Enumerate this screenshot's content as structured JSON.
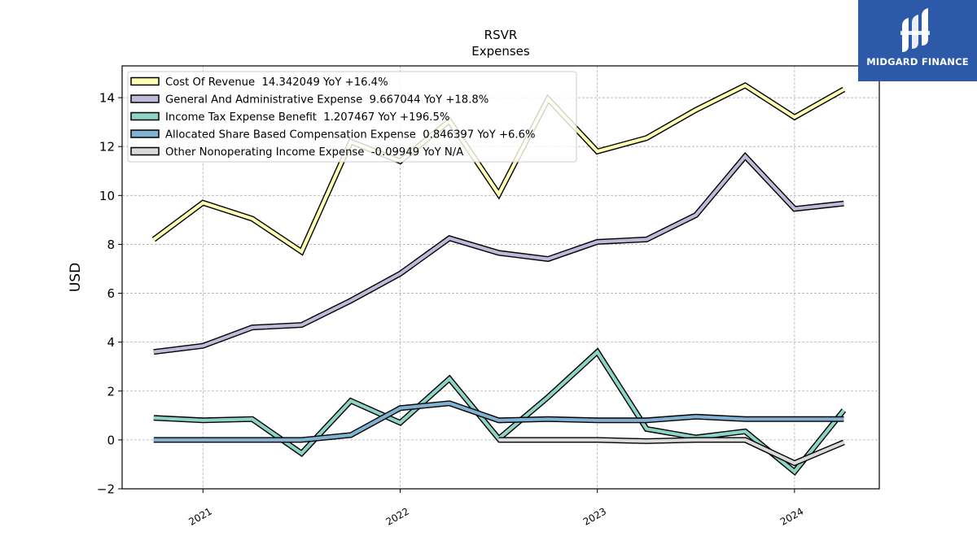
{
  "chart_data": {
    "type": "line",
    "title": "RSVR",
    "subtitle": "Expenses",
    "ylabel": "USD",
    "xlabel": "",
    "ylim": [
      -2,
      15.3
    ],
    "yticks": [
      -2,
      0,
      2,
      4,
      6,
      8,
      10,
      12,
      14
    ],
    "ytick_labels": [
      "−2",
      "0",
      "2",
      "4",
      "6",
      "8",
      "10",
      "12",
      "14"
    ],
    "xticks": [
      2021,
      2022,
      2023,
      2024
    ],
    "xtick_labels": [
      "2021",
      "2022",
      "2023",
      "2024"
    ],
    "xlim": [
      2020.59,
      2024.43
    ],
    "grid": true,
    "legend_position": "top-left",
    "x": [
      2020.75,
      2021.0,
      2021.25,
      2021.5,
      2021.75,
      2022.0,
      2022.25,
      2022.5,
      2022.75,
      2023.0,
      2023.25,
      2023.5,
      2023.75,
      2024.0,
      2024.25
    ],
    "series": [
      {
        "name": "Cost Of Revenue",
        "legend": "Cost Of Revenue  14.342049 YoY +16.4%",
        "color": "#ffffb3",
        "values": [
          8.2,
          9.7,
          9.05,
          7.7,
          12.2,
          11.4,
          13.05,
          10.05,
          13.95,
          11.8,
          12.35,
          13.5,
          14.5,
          13.2,
          14.34
        ]
      },
      {
        "name": "General And Administrative Expense",
        "legend": "General And Administrative Expense  9.667044 YoY +18.8%",
        "color": "#bebada",
        "values": [
          3.6,
          3.85,
          4.6,
          4.7,
          5.7,
          6.8,
          8.25,
          7.65,
          7.4,
          8.1,
          8.2,
          9.2,
          11.6,
          9.45,
          9.67
        ]
      },
      {
        "name": "Income Tax Expense Benefit",
        "legend": "Income Tax Expense Benefit  1.207467 YoY +196.5%",
        "color": "#8dd3c7",
        "values": [
          0.9,
          0.8,
          0.85,
          -0.55,
          1.6,
          0.7,
          2.5,
          0.05,
          1.75,
          3.6,
          0.45,
          0.1,
          0.35,
          -1.3,
          1.21
        ]
      },
      {
        "name": "Allocated Share Based Compensation Expense",
        "legend": "Allocated Share Based Compensation Expense  0.846397 YoY +6.6%",
        "color": "#80b1d3",
        "values": [
          0.0,
          0.0,
          0.0,
          0.0,
          0.2,
          1.3,
          1.5,
          0.8,
          0.85,
          0.8,
          0.8,
          0.95,
          0.85,
          0.85,
          0.85
        ]
      },
      {
        "name": "Other Nonoperating Income Expense",
        "legend": "Other Nonoperating Income Expense  -0.09949 YoY N/A",
        "color": "#d9d9d9",
        "values": [
          null,
          null,
          null,
          null,
          null,
          null,
          null,
          0.0,
          0.0,
          0.0,
          -0.05,
          0.0,
          0.0,
          -0.95,
          -0.1
        ]
      }
    ]
  },
  "logo": {
    "text": "MIDGARD FINANCE",
    "background": "#2d5aa8"
  }
}
